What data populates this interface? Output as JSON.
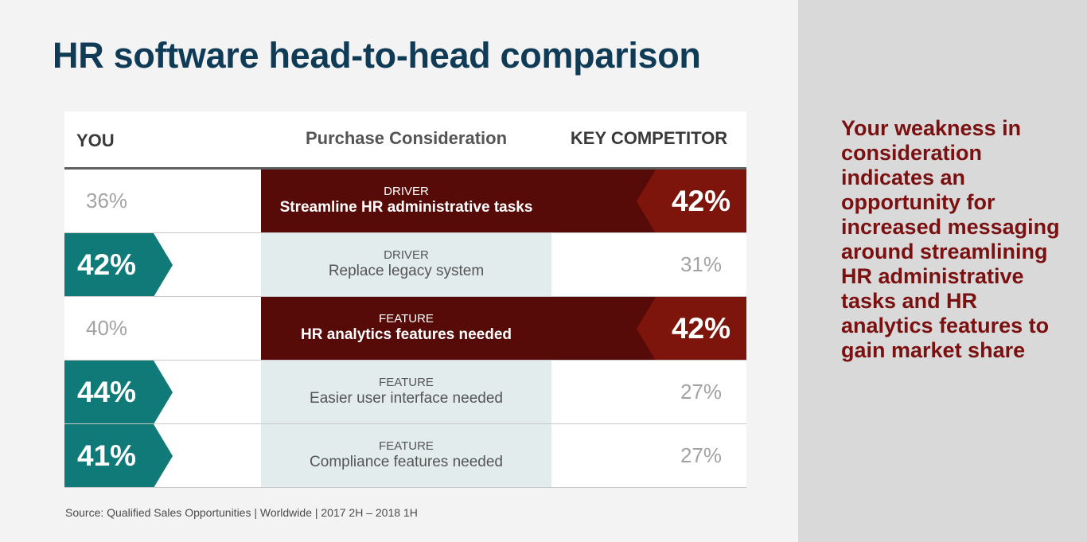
{
  "title": "HR software head-to-head comparison",
  "source": "Source: Qualified Sales Opportunities | Worldwide | 2017 2H – 2018 1H",
  "side_note": "Your weakness in consideration indicates an opportunity for increased messaging around streamlining HR administrative tasks and HR analytics features to gain market share",
  "colors": {
    "title": "#0f3b57",
    "you_strong": "#0f7a78",
    "competitor_strong": "#7d150c",
    "weakness_band": "#570b08",
    "strength_band": "#e2ecec",
    "side_note": "#7b1010"
  },
  "chart_data": {
    "type": "table",
    "headers": {
      "you": "YOU",
      "middle": "Purchase Consideration",
      "competitor": "KEY COMPETITOR"
    },
    "rows": [
      {
        "category": "DRIVER",
        "label": "Streamline HR administrative tasks",
        "you": "36%",
        "competitor": "42%",
        "you_value": 36,
        "competitor_value": 42,
        "leader": "competitor"
      },
      {
        "category": "DRIVER",
        "label": "Replace legacy system",
        "you": "42%",
        "competitor": "31%",
        "you_value": 42,
        "competitor_value": 31,
        "leader": "you"
      },
      {
        "category": "FEATURE",
        "label": "HR analytics features needed",
        "you": "40%",
        "competitor": "42%",
        "you_value": 40,
        "competitor_value": 42,
        "leader": "competitor"
      },
      {
        "category": "FEATURE",
        "label": "Easier user interface needed",
        "you": "44%",
        "competitor": "27%",
        "you_value": 44,
        "competitor_value": 27,
        "leader": "you"
      },
      {
        "category": "FEATURE",
        "label": "Compliance features needed",
        "you": "41%",
        "competitor": "27%",
        "you_value": 41,
        "competitor_value": 27,
        "leader": "you"
      }
    ]
  }
}
